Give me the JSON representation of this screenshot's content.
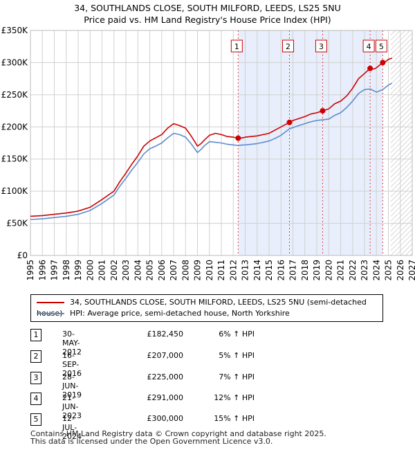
{
  "chart_data": {
    "type": "line",
    "title": "34, SOUTHLANDS CLOSE, SOUTH MILFORD, LEEDS, LS25 5NU",
    "subtitle": "Price paid vs. HM Land Registry's House Price Index (HPI)",
    "xlim": [
      1995,
      2027
    ],
    "ylim": [
      0,
      350000
    ],
    "y_ticks": [
      0,
      50000,
      100000,
      150000,
      200000,
      250000,
      300000,
      350000
    ],
    "y_tick_labels": [
      "£0",
      "£50K",
      "£100K",
      "£150K",
      "£200K",
      "£250K",
      "£300K",
      "£350K"
    ],
    "x_ticks": [
      1995,
      1996,
      1997,
      1998,
      1999,
      2000,
      2001,
      2002,
      2003,
      2004,
      2005,
      2006,
      2007,
      2008,
      2009,
      2010,
      2011,
      2012,
      2013,
      2014,
      2015,
      2016,
      2017,
      2018,
      2019,
      2020,
      2021,
      2022,
      2023,
      2024,
      2025,
      2026,
      2027
    ],
    "x_tick_labels": [
      "1995",
      "1996",
      "1997",
      "1998",
      "1999",
      "2000",
      "2001",
      "2002",
      "2003",
      "2004",
      "2005",
      "2006",
      "2007",
      "2008",
      "2009",
      "2010",
      "2011",
      "2012",
      "2013",
      "2014",
      "2015",
      "2016",
      "2017",
      "2018",
      "2019",
      "2020",
      "2021",
      "2022",
      "2023",
      "2024",
      "2025",
      "2026",
      "2027"
    ],
    "grid": true,
    "shaded_range": [
      2012.41,
      2024.53
    ],
    "future_hatch_from": 2025.2,
    "series": [
      {
        "name": "34, SOUTHLANDS CLOSE, SOUTH MILFORD, LEEDS, LS25 5NU (semi-detached house)",
        "color": "#cc0000",
        "x": [
          1995.0,
          1996.0,
          1997.0,
          1998.0,
          1999.0,
          2000.0,
          2001.0,
          2002.0,
          2002.5,
          2003.0,
          2003.5,
          2004.0,
          2004.5,
          2005.0,
          2005.5,
          2006.0,
          2006.5,
          2007.0,
          2007.5,
          2008.0,
          2008.5,
          2009.0,
          2009.3,
          2009.6,
          2010.0,
          2010.5,
          2011.0,
          2011.5,
          2012.0,
          2012.41,
          2012.8,
          2013.0,
          2013.5,
          2014.0,
          2014.5,
          2015.0,
          2015.5,
          2016.0,
          2016.71,
          2017.0,
          2017.5,
          2018.0,
          2018.5,
          2019.0,
          2019.49,
          2020.0,
          2020.5,
          2021.0,
          2021.5,
          2022.0,
          2022.5,
          2023.0,
          2023.47,
          2023.8,
          2024.0,
          2024.53,
          2024.8,
          2025.0,
          2025.3
        ],
        "y": [
          61000,
          62000,
          64000,
          66000,
          69000,
          75000,
          87000,
          100000,
          115000,
          128000,
          142000,
          155000,
          170000,
          178000,
          183000,
          188000,
          198000,
          205000,
          202000,
          198000,
          185000,
          170000,
          174000,
          180000,
          187000,
          190000,
          188000,
          185000,
          184000,
          182450,
          183000,
          184000,
          185000,
          186000,
          188000,
          190000,
          195000,
          200000,
          207000,
          210000,
          213000,
          216000,
          220000,
          222000,
          225000,
          228000,
          236000,
          240000,
          248000,
          260000,
          275000,
          283000,
          291000,
          290000,
          292000,
          300000,
          302000,
          305000,
          307000
        ]
      },
      {
        "name": "HPI: Average price, semi-detached house, North Yorkshire",
        "color": "#5b8ccc",
        "x": [
          1995.0,
          1996.0,
          1997.0,
          1998.0,
          1999.0,
          2000.0,
          2001.0,
          2002.0,
          2002.5,
          2003.0,
          2003.5,
          2004.0,
          2004.5,
          2005.0,
          2005.5,
          2006.0,
          2006.5,
          2007.0,
          2007.5,
          2008.0,
          2008.5,
          2009.0,
          2009.3,
          2009.6,
          2010.0,
          2010.5,
          2011.0,
          2011.5,
          2012.0,
          2012.41,
          2012.8,
          2013.0,
          2013.5,
          2014.0,
          2014.5,
          2015.0,
          2015.5,
          2016.0,
          2016.71,
          2017.0,
          2017.5,
          2018.0,
          2018.5,
          2019.0,
          2019.49,
          2020.0,
          2020.5,
          2021.0,
          2021.5,
          2022.0,
          2022.5,
          2023.0,
          2023.47,
          2023.8,
          2024.0,
          2024.53,
          2024.8,
          2025.0,
          2025.3
        ],
        "y": [
          56000,
          57000,
          59000,
          61000,
          64000,
          70000,
          81000,
          94000,
          108000,
          120000,
          133000,
          145000,
          158000,
          166000,
          170000,
          175000,
          183000,
          190000,
          188000,
          184000,
          173000,
          160000,
          165000,
          171000,
          177000,
          176000,
          175000,
          173000,
          172000,
          171000,
          172000,
          172000,
          173000,
          174000,
          176000,
          178000,
          182000,
          187000,
          197000,
          199000,
          202000,
          205000,
          208000,
          210000,
          211000,
          212000,
          218000,
          222000,
          230000,
          240000,
          252000,
          258000,
          259000,
          256000,
          254000,
          258000,
          262000,
          265000,
          268000
        ]
      }
    ],
    "sales": [
      {
        "label": "1",
        "x": 2012.41,
        "y": 182450
      },
      {
        "label": "2",
        "x": 2016.71,
        "y": 207000
      },
      {
        "label": "3",
        "x": 2019.49,
        "y": 225000
      },
      {
        "label": "4",
        "x": 2023.47,
        "y": 291000
      },
      {
        "label": "5",
        "x": 2024.53,
        "y": 300000
      }
    ]
  },
  "legend": {
    "property_label": "34, SOUTHLANDS CLOSE, SOUTH MILFORD, LEEDS, LS25 5NU (semi-detached house)",
    "hpi_label": "HPI: Average price, semi-detached house, North Yorkshire"
  },
  "transactions": [
    {
      "num": "1",
      "date": "30-MAY-2012",
      "price": "£182,450",
      "hpi": "6% ↑ HPI"
    },
    {
      "num": "2",
      "date": "16-SEP-2016",
      "price": "£207,000",
      "hpi": "5% ↑ HPI"
    },
    {
      "num": "3",
      "date": "28-JUN-2019",
      "price": "£225,000",
      "hpi": "7% ↑ HPI"
    },
    {
      "num": "4",
      "date": "21-JUN-2023",
      "price": "£291,000",
      "hpi": "12% ↑ HPI"
    },
    {
      "num": "5",
      "date": "12-JUL-2024",
      "price": "£300,000",
      "hpi": "15% ↑ HPI"
    }
  ],
  "footer": {
    "line1": "Contains HM Land Registry data © Crown copyright and database right 2025.",
    "line2": "This data is licensed under the Open Government Licence v3.0."
  }
}
